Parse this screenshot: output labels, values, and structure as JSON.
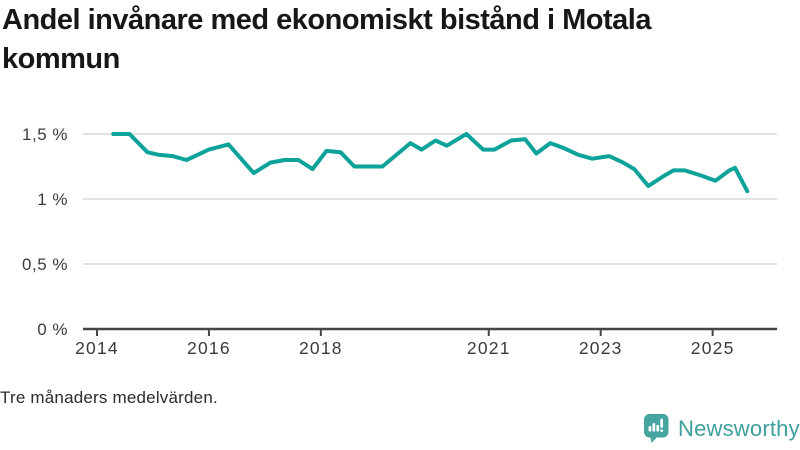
{
  "header": {
    "title_lines": [
      "Andel invånare med ekonomiskt bistånd i Motala",
      "kommun"
    ]
  },
  "footnote": "Tre månaders medelvärden.",
  "branding": {
    "name": "Newsworthy",
    "icon": "newsworthy-bar-chart-bubble-icon"
  },
  "colors": {
    "line": "#0da29a",
    "grid": "#e3e3e3",
    "axis": "#454545",
    "tick_label": "#3b3b3b",
    "title": "#171717",
    "brand": "#3f9f9c"
  },
  "chart_data": {
    "type": "line",
    "title": "Andel invånare med ekonomiskt bistånd i Motala kommun",
    "note": "Tre månaders medelvärden.",
    "series_name": "Andel invånare med ekonomiskt bistånd",
    "unit": "%",
    "grid": true,
    "xlim": [
      2013.75,
      2026.15
    ],
    "ylim": [
      0,
      1.65
    ],
    "x_ticks": {
      "values": [
        2014,
        2016,
        2018,
        2021,
        2023,
        2025
      ],
      "labels": [
        "2014",
        "2016",
        "2018",
        "2021",
        "2023",
        "2025"
      ]
    },
    "y_ticks": {
      "values": [
        0,
        0.5,
        1,
        1.5
      ],
      "labels": [
        "0 %",
        "0,5 %",
        "1 %",
        "1,5 %"
      ]
    },
    "x": [
      2014.29,
      2014.58,
      2014.9,
      2015.1,
      2015.35,
      2015.6,
      2016.0,
      2016.35,
      2016.8,
      2017.1,
      2017.35,
      2017.6,
      2017.85,
      2018.1,
      2018.35,
      2018.6,
      2019.1,
      2019.6,
      2019.8,
      2020.05,
      2020.25,
      2020.6,
      2020.9,
      2021.1,
      2021.4,
      2021.65,
      2021.85,
      2022.1,
      2022.35,
      2022.6,
      2022.85,
      2023.15,
      2023.4,
      2023.6,
      2023.85,
      2024.1,
      2024.3,
      2024.5,
      2024.8,
      2025.05,
      2025.3,
      2025.4,
      2025.62
    ],
    "values": [
      1.5,
      1.5,
      1.36,
      1.34,
      1.33,
      1.3,
      1.38,
      1.42,
      1.2,
      1.28,
      1.3,
      1.3,
      1.23,
      1.37,
      1.36,
      1.25,
      1.25,
      1.43,
      1.38,
      1.45,
      1.41,
      1.5,
      1.38,
      1.38,
      1.45,
      1.46,
      1.35,
      1.43,
      1.39,
      1.34,
      1.31,
      1.33,
      1.28,
      1.23,
      1.1,
      1.17,
      1.22,
      1.22,
      1.18,
      1.14,
      1.22,
      1.24,
      1.06
    ]
  }
}
